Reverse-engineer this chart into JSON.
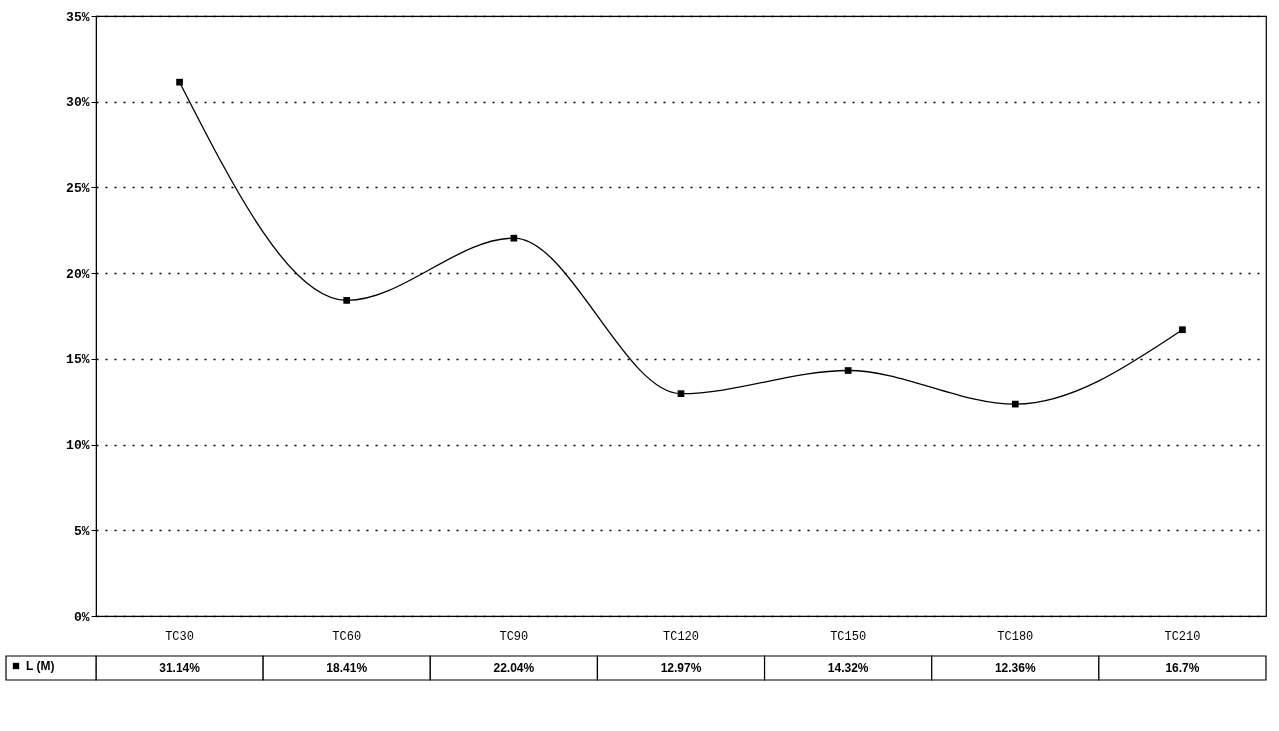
{
  "chart_data": {
    "type": "line",
    "categories": [
      "TC30",
      "TC60",
      "TC90",
      "TC120",
      "TC150",
      "TC180",
      "TC210"
    ],
    "series": [
      {
        "name": "L (M)",
        "color": "#000000",
        "values": [
          31.14,
          18.41,
          22.04,
          12.97,
          14.32,
          12.36,
          16.7
        ],
        "value_labels": [
          "31.14%",
          "18.41%",
          "22.04%",
          "12.97%",
          "14.32%",
          "12.36%",
          "16.7%"
        ]
      }
    ],
    "ylim": [
      0,
      35
    ],
    "yticks": [
      {
        "value": 0,
        "label": "0%"
      },
      {
        "value": 5,
        "label": "5%"
      },
      {
        "value": 10,
        "label": "10%"
      },
      {
        "value": 15,
        "label": "15%"
      },
      {
        "value": 20,
        "label": "20%"
      },
      {
        "value": 25,
        "label": "25%"
      },
      {
        "value": 30,
        "label": "30%"
      },
      {
        "value": 35,
        "label": "35%"
      }
    ],
    "grid": "y",
    "marker": "square",
    "line_style": "solid",
    "legend": "bottom left"
  }
}
